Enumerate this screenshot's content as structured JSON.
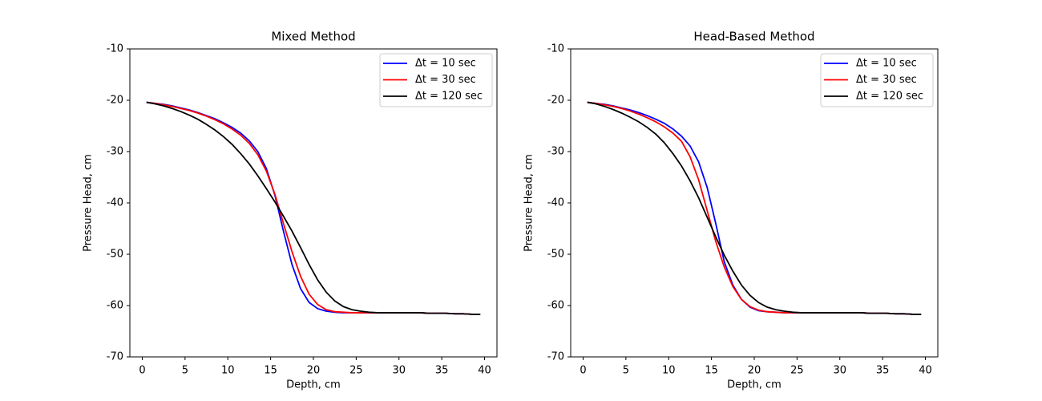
{
  "chart_data": [
    {
      "type": "line",
      "title": "Mixed Method",
      "x_label": "Depth, cm",
      "y_label": "Pressure Head, cm",
      "x": [
        0.5,
        1.5,
        2.5,
        3.5,
        4.5,
        5.5,
        6.5,
        7.5,
        8.5,
        9.5,
        10.5,
        11.5,
        12.5,
        13.5,
        14.5,
        15.5,
        16.5,
        17.5,
        18.5,
        19.5,
        20.5,
        21.5,
        22.5,
        23.5,
        24.5,
        25.5,
        26.5,
        27.5,
        28.5,
        29.5,
        30.5,
        31.5,
        32.5,
        33.5,
        34.5,
        35.5,
        36.5,
        37.5,
        38.5,
        39.5
      ],
      "series": [
        {
          "name": "Δt = 10 sec",
          "color": "#0000ff",
          "values": [
            -20.4,
            -20.6,
            -20.8,
            -21.1,
            -21.5,
            -21.9,
            -22.4,
            -23.0,
            -23.6,
            -24.4,
            -25.3,
            -26.4,
            -27.9,
            -30.0,
            -33.3,
            -38.5,
            -45.5,
            -52.0,
            -56.7,
            -59.4,
            -60.6,
            -61.1,
            -61.3,
            -61.4,
            -61.4,
            -61.4,
            -61.4,
            -61.4,
            -61.4,
            -61.4,
            -61.4,
            -61.4,
            -61.4,
            -61.5,
            -61.5,
            -61.5,
            -61.6,
            -61.6,
            -61.7,
            -61.7
          ]
        },
        {
          "name": "Δt = 30 sec",
          "color": "#ff0000",
          "values": [
            -20.4,
            -20.6,
            -20.9,
            -21.2,
            -21.6,
            -22.0,
            -22.5,
            -23.1,
            -23.8,
            -24.6,
            -25.6,
            -26.8,
            -28.4,
            -30.6,
            -33.8,
            -38.3,
            -44.0,
            -49.5,
            -54.3,
            -57.8,
            -59.8,
            -60.8,
            -61.2,
            -61.3,
            -61.4,
            -61.4,
            -61.4,
            -61.4,
            -61.4,
            -61.4,
            -61.4,
            -61.4,
            -61.4,
            -61.5,
            -61.5,
            -61.5,
            -61.6,
            -61.6,
            -61.7,
            -61.7
          ]
        },
        {
          "name": "Δt = 120 sec",
          "color": "#000000",
          "values": [
            -20.4,
            -20.7,
            -21.1,
            -21.6,
            -22.2,
            -22.9,
            -23.7,
            -24.7,
            -25.8,
            -27.1,
            -28.6,
            -30.4,
            -32.4,
            -34.7,
            -37.2,
            -39.8,
            -42.6,
            -45.5,
            -48.7,
            -52.0,
            -55.0,
            -57.4,
            -59.1,
            -60.2,
            -60.8,
            -61.1,
            -61.3,
            -61.4,
            -61.4,
            -61.4,
            -61.4,
            -61.4,
            -61.4,
            -61.5,
            -61.5,
            -61.5,
            -61.6,
            -61.6,
            -61.7,
            -61.7
          ]
        }
      ],
      "xlim": [
        -1.45,
        41.45
      ],
      "xticks": [
        0,
        5,
        10,
        15,
        20,
        25,
        30,
        35,
        40
      ],
      "ylim": [
        -70,
        -10
      ],
      "yticks": [
        -70,
        -60,
        -50,
        -40,
        -30,
        -20,
        -10
      ],
      "legend": "upper right"
    },
    {
      "type": "line",
      "title": "Head-Based Method",
      "x_label": "Depth, cm",
      "y_label": "Pressure Head, cm",
      "x": [
        0.5,
        1.5,
        2.5,
        3.5,
        4.5,
        5.5,
        6.5,
        7.5,
        8.5,
        9.5,
        10.5,
        11.5,
        12.5,
        13.5,
        14.5,
        15.5,
        16.5,
        17.5,
        18.5,
        19.5,
        20.5,
        21.5,
        22.5,
        23.5,
        24.5,
        25.5,
        26.5,
        27.5,
        28.5,
        29.5,
        30.5,
        31.5,
        32.5,
        33.5,
        34.5,
        35.5,
        36.5,
        37.5,
        38.5,
        39.5
      ],
      "series": [
        {
          "name": "Δt = 10 sec",
          "color": "#0000ff",
          "values": [
            -20.4,
            -20.6,
            -20.8,
            -21.1,
            -21.5,
            -21.9,
            -22.4,
            -23.0,
            -23.7,
            -24.5,
            -25.6,
            -27.0,
            -28.9,
            -32.0,
            -37.0,
            -44.0,
            -51.5,
            -56.0,
            -58.8,
            -60.3,
            -61.0,
            -61.2,
            -61.3,
            -61.4,
            -61.4,
            -61.4,
            -61.4,
            -61.4,
            -61.4,
            -61.4,
            -61.4,
            -61.4,
            -61.4,
            -61.5,
            -61.5,
            -61.5,
            -61.6,
            -61.6,
            -61.7,
            -61.7
          ]
        },
        {
          "name": "Δt = 30 sec",
          "color": "#ff0000",
          "values": [
            -20.4,
            -20.6,
            -20.9,
            -21.2,
            -21.6,
            -22.1,
            -22.7,
            -23.4,
            -24.2,
            -25.2,
            -26.4,
            -28.0,
            -31.0,
            -35.5,
            -41.5,
            -47.5,
            -52.5,
            -56.3,
            -58.8,
            -60.2,
            -60.9,
            -61.2,
            -61.3,
            -61.4,
            -61.4,
            -61.4,
            -61.4,
            -61.4,
            -61.4,
            -61.4,
            -61.4,
            -61.4,
            -61.4,
            -61.5,
            -61.5,
            -61.5,
            -61.6,
            -61.6,
            -61.7,
            -61.7
          ]
        },
        {
          "name": "Δt = 120 sec",
          "color": "#000000",
          "values": [
            -20.4,
            -20.7,
            -21.2,
            -21.8,
            -22.5,
            -23.3,
            -24.2,
            -25.3,
            -26.6,
            -28.3,
            -30.4,
            -32.8,
            -35.7,
            -39.0,
            -42.8,
            -46.6,
            -50.2,
            -53.3,
            -56.0,
            -58.0,
            -59.4,
            -60.3,
            -60.8,
            -61.1,
            -61.3,
            -61.4,
            -61.4,
            -61.4,
            -61.4,
            -61.4,
            -61.4,
            -61.4,
            -61.4,
            -61.5,
            -61.5,
            -61.5,
            -61.6,
            -61.6,
            -61.7,
            -61.7
          ]
        }
      ],
      "xlim": [
        -1.45,
        41.45
      ],
      "xticks": [
        0,
        5,
        10,
        15,
        20,
        25,
        30,
        35,
        40
      ],
      "ylim": [
        -70,
        -10
      ],
      "yticks": [
        -70,
        -60,
        -50,
        -40,
        -30,
        -20,
        -10
      ],
      "legend": "upper right"
    }
  ]
}
